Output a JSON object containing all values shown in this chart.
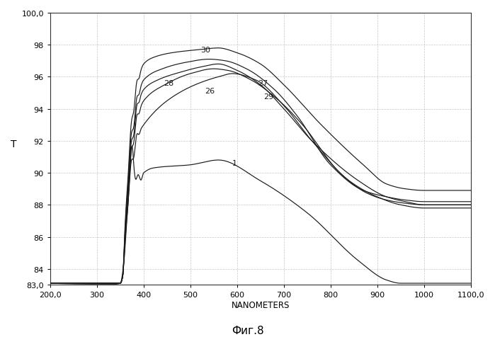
{
  "title": "Фиг.8",
  "xlabel": "NANOMETERS",
  "ylabel": "T",
  "xlim": [
    200.0,
    1100.0
  ],
  "ylim": [
    83.0,
    100.0
  ],
  "ytick_vals": [
    83.0,
    84,
    86,
    88,
    90,
    92,
    94,
    96,
    98,
    100.0
  ],
  "ytick_labels": [
    "83,0",
    "84",
    "86",
    "88",
    "90",
    "92",
    "94",
    "96",
    "98",
    "100,0"
  ],
  "xtick_vals": [
    200.0,
    300,
    400,
    500,
    600,
    700,
    800,
    900,
    1000,
    1100.0
  ],
  "xtick_labels": [
    "200,0",
    "300",
    "400",
    "500",
    "600",
    "700",
    "800",
    "900",
    "1000",
    "1100,0"
  ],
  "line_color": "#1a1a1a",
  "grid_color": "#c0c0c0",
  "label_1": [
    590,
    90.5
  ],
  "label_26": [
    530,
    95.0
  ],
  "label_27": [
    645,
    95.5
  ],
  "label_28": [
    443,
    95.5
  ],
  "label_29": [
    657,
    94.65
  ],
  "label_30": [
    521,
    97.55
  ]
}
